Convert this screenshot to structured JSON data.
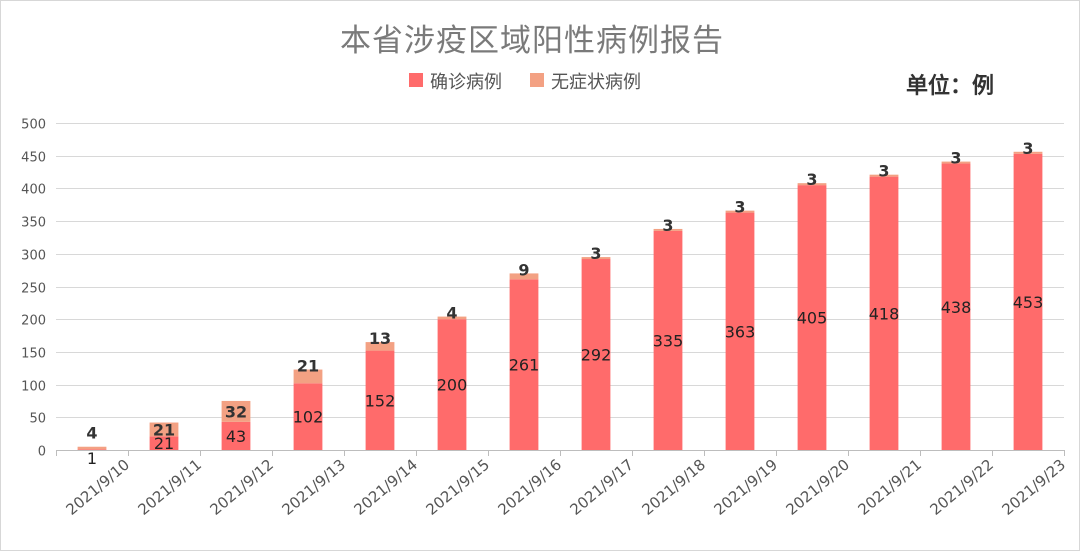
{
  "chart_data": {
    "type": "bar",
    "stacked": true,
    "title": "本省涉疫区域阳性病例报告",
    "unit_label": "单位：例",
    "categories": [
      "2021/9/10",
      "2021/9/11",
      "2021/9/12",
      "2021/9/13",
      "2021/9/14",
      "2021/9/15",
      "2021/9/16",
      "2021/9/17",
      "2021/9/18",
      "2021/9/19",
      "2021/9/20",
      "2021/9/21",
      "2021/9/22",
      "2021/9/23"
    ],
    "series": [
      {
        "name": "确诊病例",
        "color": "#ff6b6b",
        "values": [
          1,
          21,
          43,
          102,
          152,
          200,
          261,
          292,
          335,
          363,
          405,
          418,
          438,
          453
        ]
      },
      {
        "name": "无症状病例",
        "color": "#f3a183",
        "values": [
          4,
          21,
          32,
          21,
          13,
          4,
          9,
          3,
          3,
          3,
          3,
          3,
          3,
          3
        ]
      }
    ],
    "ylim": [
      0,
      500
    ],
    "yticks": [
      0,
      50,
      100,
      150,
      200,
      250,
      300,
      350,
      400,
      450,
      500
    ],
    "grid": true,
    "legend_position": "top-center"
  }
}
